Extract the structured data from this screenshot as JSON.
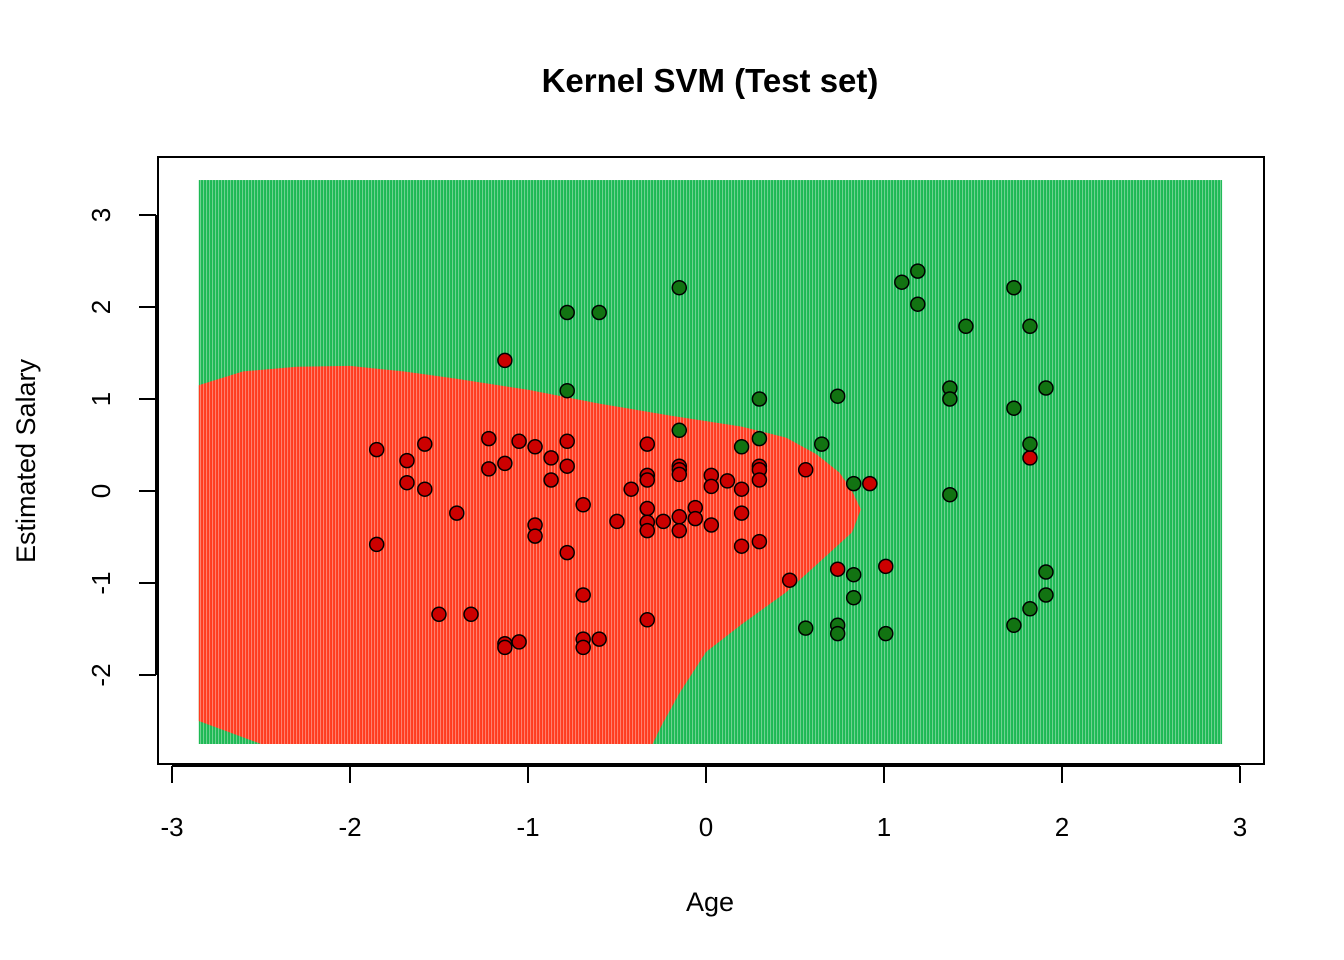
{
  "chart_data": {
    "type": "scatter",
    "title": "Kernel SVM (Test set)",
    "xlabel": "Age",
    "ylabel": "Estimated Salary",
    "xlim": [
      -3,
      3
    ],
    "ylim": [
      -2.9,
      3.5
    ],
    "xticks": [
      -3,
      -2,
      -1,
      0,
      1,
      2,
      3
    ],
    "yticks": [
      -2,
      -1,
      0,
      1,
      2,
      3
    ],
    "grid": false,
    "legend": "none",
    "grid_extent": {
      "x": [
        -2.85,
        2.9
      ],
      "y": [
        -2.75,
        3.38
      ]
    },
    "colors": {
      "region_class0": "#ff3b1f",
      "region_class1": "#1db954",
      "point_class0": "#cc0000",
      "point_class1": "#127312",
      "point_outline": "#000000"
    },
    "decision_boundary": {
      "description": "class 0 (red) region boundary, polygon in data units",
      "polygon": [
        [
          -2.85,
          1.15
        ],
        [
          -2.6,
          1.3
        ],
        [
          -2.3,
          1.35
        ],
        [
          -2.0,
          1.36
        ],
        [
          -1.7,
          1.3
        ],
        [
          -1.4,
          1.22
        ],
        [
          -1.0,
          1.1
        ],
        [
          -0.6,
          0.95
        ],
        [
          -0.2,
          0.82
        ],
        [
          0.2,
          0.7
        ],
        [
          0.45,
          0.58
        ],
        [
          0.62,
          0.4
        ],
        [
          0.75,
          0.2
        ],
        [
          0.82,
          0.0
        ],
        [
          0.87,
          -0.2
        ],
        [
          0.82,
          -0.45
        ],
        [
          0.65,
          -0.75
        ],
        [
          0.45,
          -1.1
        ],
        [
          0.2,
          -1.45
        ],
        [
          0.0,
          -1.75
        ],
        [
          -0.15,
          -2.2
        ],
        [
          -0.25,
          -2.55
        ],
        [
          -0.3,
          -2.75
        ],
        [
          -2.5,
          -2.75
        ],
        [
          -2.85,
          -2.5
        ]
      ]
    },
    "series": [
      {
        "class": 0,
        "points": [
          [
            -1.85,
            0.45
          ],
          [
            -1.85,
            -0.58
          ],
          [
            -1.68,
            0.33
          ],
          [
            -1.68,
            0.09
          ],
          [
            -1.58,
            0.51
          ],
          [
            -1.58,
            0.02
          ],
          [
            -1.5,
            -1.34
          ],
          [
            -1.4,
            -0.24
          ],
          [
            -1.32,
            -1.34
          ],
          [
            -1.22,
            0.57
          ],
          [
            -1.22,
            0.24
          ],
          [
            -1.13,
            1.42
          ],
          [
            -1.13,
            0.3
          ],
          [
            -1.13,
            -1.66
          ],
          [
            -1.13,
            -1.7
          ],
          [
            -1.05,
            0.54
          ],
          [
            -1.05,
            -1.64
          ],
          [
            -0.96,
            0.48
          ],
          [
            -0.96,
            -0.37
          ],
          [
            -0.96,
            -0.49
          ],
          [
            -0.87,
            0.36
          ],
          [
            -0.87,
            0.12
          ],
          [
            -0.78,
            0.54
          ],
          [
            -0.78,
            0.27
          ],
          [
            -0.78,
            -0.67
          ],
          [
            -0.69,
            -0.15
          ],
          [
            -0.69,
            -1.13
          ],
          [
            -0.69,
            -1.61
          ],
          [
            -0.69,
            -1.7
          ],
          [
            -0.6,
            -1.61
          ],
          [
            -0.5,
            -0.33
          ],
          [
            -0.42,
            0.02
          ],
          [
            -0.33,
            0.51
          ],
          [
            -0.33,
            0.17
          ],
          [
            -0.33,
            0.12
          ],
          [
            -0.33,
            -0.19
          ],
          [
            -0.33,
            -0.34
          ],
          [
            -0.33,
            -0.43
          ],
          [
            -0.33,
            -1.4
          ],
          [
            -0.24,
            -0.33
          ],
          [
            -0.15,
            0.27
          ],
          [
            -0.15,
            0.23
          ],
          [
            -0.15,
            0.18
          ],
          [
            -0.15,
            -0.28
          ],
          [
            -0.15,
            -0.43
          ],
          [
            -0.06,
            -0.18
          ],
          [
            -0.06,
            -0.3
          ],
          [
            0.03,
            0.17
          ],
          [
            0.03,
            0.05
          ],
          [
            0.03,
            -0.37
          ],
          [
            0.12,
            0.11
          ],
          [
            0.2,
            0.02
          ],
          [
            0.2,
            -0.24
          ],
          [
            0.2,
            -0.6
          ],
          [
            0.3,
            0.27
          ],
          [
            0.3,
            0.23
          ],
          [
            0.3,
            0.12
          ],
          [
            0.3,
            -0.55
          ],
          [
            0.47,
            -0.97
          ],
          [
            0.56,
            0.23
          ],
          [
            0.74,
            -0.85
          ],
          [
            0.92,
            0.08
          ],
          [
            1.01,
            -0.82
          ],
          [
            1.82,
            0.36
          ]
        ]
      },
      {
        "class": 1,
        "points": [
          [
            -0.78,
            1.94
          ],
          [
            -0.78,
            1.09
          ],
          [
            -0.6,
            1.94
          ],
          [
            -0.15,
            2.21
          ],
          [
            -0.15,
            0.66
          ],
          [
            0.2,
            0.48
          ],
          [
            0.3,
            1.0
          ],
          [
            0.3,
            0.57
          ],
          [
            0.56,
            -1.49
          ],
          [
            0.65,
            0.51
          ],
          [
            0.74,
            1.03
          ],
          [
            0.74,
            -1.46
          ],
          [
            0.74,
            -1.55
          ],
          [
            0.83,
            0.08
          ],
          [
            0.83,
            -0.91
          ],
          [
            0.83,
            -1.16
          ],
          [
            1.01,
            -1.55
          ],
          [
            1.1,
            2.27
          ],
          [
            1.19,
            2.39
          ],
          [
            1.19,
            2.03
          ],
          [
            1.37,
            1.12
          ],
          [
            1.37,
            1.0
          ],
          [
            1.37,
            -0.04
          ],
          [
            1.46,
            1.79
          ],
          [
            1.73,
            2.21
          ],
          [
            1.73,
            0.9
          ],
          [
            1.73,
            -1.46
          ],
          [
            1.82,
            1.79
          ],
          [
            1.82,
            0.51
          ],
          [
            1.82,
            -1.28
          ],
          [
            1.91,
            1.12
          ],
          [
            1.91,
            -0.88
          ],
          [
            1.91,
            -1.13
          ]
        ]
      }
    ]
  }
}
